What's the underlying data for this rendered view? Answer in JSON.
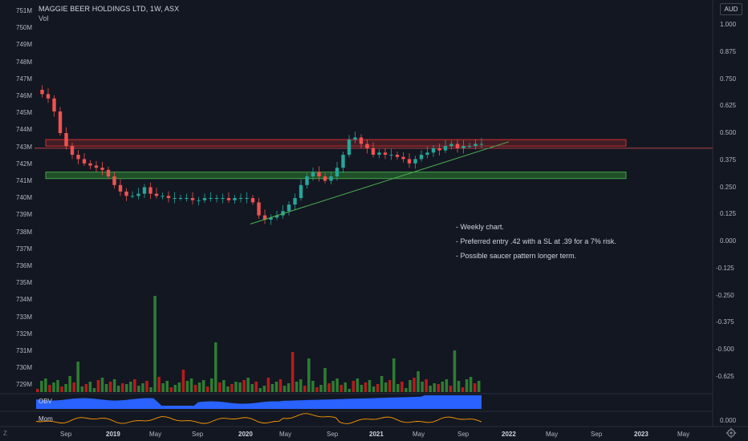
{
  "header": {
    "title": "MAGGIE BEER HOLDINGS LTD, 1W, ASX",
    "subtitle": "Vol",
    "currency": "AUD"
  },
  "bottom_bar": {
    "z_button": "Z"
  },
  "panes": {
    "obv_label": "OBV",
    "mom_label": "Mom"
  },
  "notes": [
    "- Weekly chart.",
    "- Preferred entry .42 with a SL at .39 for a 7% risk.",
    "- Possible saucer pattern longer term."
  ],
  "colors": {
    "background": "#131722",
    "up": "#26a69a",
    "down": "#ef5350",
    "vol_up": "#2e7d32",
    "vol_down": "#b71c1c",
    "resistance_zone": "#d32f2f",
    "support_zone": "#2e7d32",
    "trendline": "#4caf50",
    "obv_fill": "#2962ff",
    "mom_line": "#ff9800"
  },
  "chart_data": {
    "type": "candlestick",
    "title": "MAGGIE BEER HOLDINGS LTD, 1W, ASX",
    "right_axis": {
      "label": "AUD",
      "ticks": [
        "1.000",
        "0.875",
        "0.750",
        "0.625",
        "0.500",
        "0.375",
        "0.250",
        "0.125",
        "0.000",
        "-0.125",
        "-0.250",
        "-0.375",
        "-0.500",
        "-0.625"
      ],
      "range": [
        -0.7,
        1.1
      ]
    },
    "left_axis": {
      "label": "Vol",
      "ticks": [
        "751M",
        "750M",
        "749M",
        "748M",
        "747M",
        "746M",
        "745M",
        "744M",
        "743M",
        "742M",
        "741M",
        "740M",
        "739M",
        "738M",
        "737M",
        "736M",
        "735M",
        "734M",
        "733M",
        "732M",
        "731M",
        "730M",
        "729M"
      ]
    },
    "x_ticks": [
      {
        "label": "Sep",
        "bold": false
      },
      {
        "label": "2019",
        "bold": true
      },
      {
        "label": "May",
        "bold": false
      },
      {
        "label": "Sep",
        "bold": false
      },
      {
        "label": "2020",
        "bold": true
      },
      {
        "label": "May",
        "bold": false
      },
      {
        "label": "Sep",
        "bold": false
      },
      {
        "label": "2021",
        "bold": true
      },
      {
        "label": "May",
        "bold": false
      },
      {
        "label": "Sep",
        "bold": false
      },
      {
        "label": "2022",
        "bold": true
      },
      {
        "label": "May",
        "bold": false
      },
      {
        "label": "Sep",
        "bold": false
      },
      {
        "label": "2023",
        "bold": true
      },
      {
        "label": "May",
        "bold": false
      }
    ],
    "price_path": [
      0.7,
      0.68,
      0.66,
      0.6,
      0.5,
      0.44,
      0.4,
      0.38,
      0.36,
      0.35,
      0.34,
      0.33,
      0.3,
      0.26,
      0.23,
      0.21,
      0.21,
      0.22,
      0.25,
      0.22,
      0.21,
      0.21,
      0.2,
      0.2,
      0.2,
      0.2,
      0.19,
      0.19,
      0.2,
      0.2,
      0.2,
      0.2,
      0.19,
      0.2,
      0.2,
      0.2,
      0.18,
      0.12,
      0.1,
      0.11,
      0.12,
      0.14,
      0.17,
      0.2,
      0.26,
      0.3,
      0.32,
      0.3,
      0.28,
      0.3,
      0.34,
      0.4,
      0.47,
      0.48,
      0.45,
      0.43,
      0.4,
      0.41,
      0.4,
      0.4,
      0.39,
      0.38,
      0.36,
      0.38,
      0.4,
      0.41,
      0.43,
      0.42,
      0.44,
      0.45,
      0.43,
      0.44,
      0.44,
      0.45,
      0.45
    ],
    "annotations": {
      "resistance_zone": [
        0.44,
        0.47
      ],
      "support_zone": [
        0.29,
        0.32
      ],
      "current_price": 0.43,
      "trendline": {
        "from": {
          "week": 38,
          "price": 0.08
        },
        "to": {
          "week": 79,
          "price": 0.46
        }
      }
    }
  }
}
